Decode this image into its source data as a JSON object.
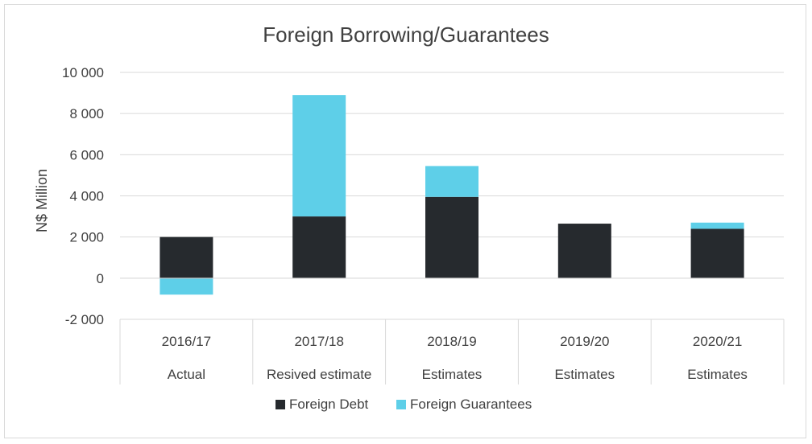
{
  "chart_data": {
    "type": "bar",
    "stacked": true,
    "title": "Foreign Borrowing/Guarantees",
    "ylabel": "N$ Million",
    "xlabel": "",
    "ylim": [
      -2000,
      10000
    ],
    "yticks": [
      -2000,
      0,
      2000,
      4000,
      6000,
      8000,
      10000
    ],
    "ytick_labels": [
      "-2 000",
      "0",
      "2 000",
      "4 000",
      "6 000",
      "8 000",
      "10 000"
    ],
    "grid": true,
    "legend_position": "bottom",
    "categories": [
      "2016/17",
      "2017/18",
      "2018/19",
      "2019/20",
      "2020/21"
    ],
    "category_sublabels": [
      "Actual",
      "Resived estimate",
      "Estimates",
      "Estimates",
      "Estimates"
    ],
    "series": [
      {
        "name": "Foreign Debt",
        "color": "#262a2e",
        "values": [
          2000,
          3000,
          3950,
          2650,
          2400
        ]
      },
      {
        "name": "Foreign Guarantees",
        "color": "#5ecfe8",
        "values": [
          -800,
          5900,
          1500,
          0,
          300
        ]
      }
    ]
  }
}
